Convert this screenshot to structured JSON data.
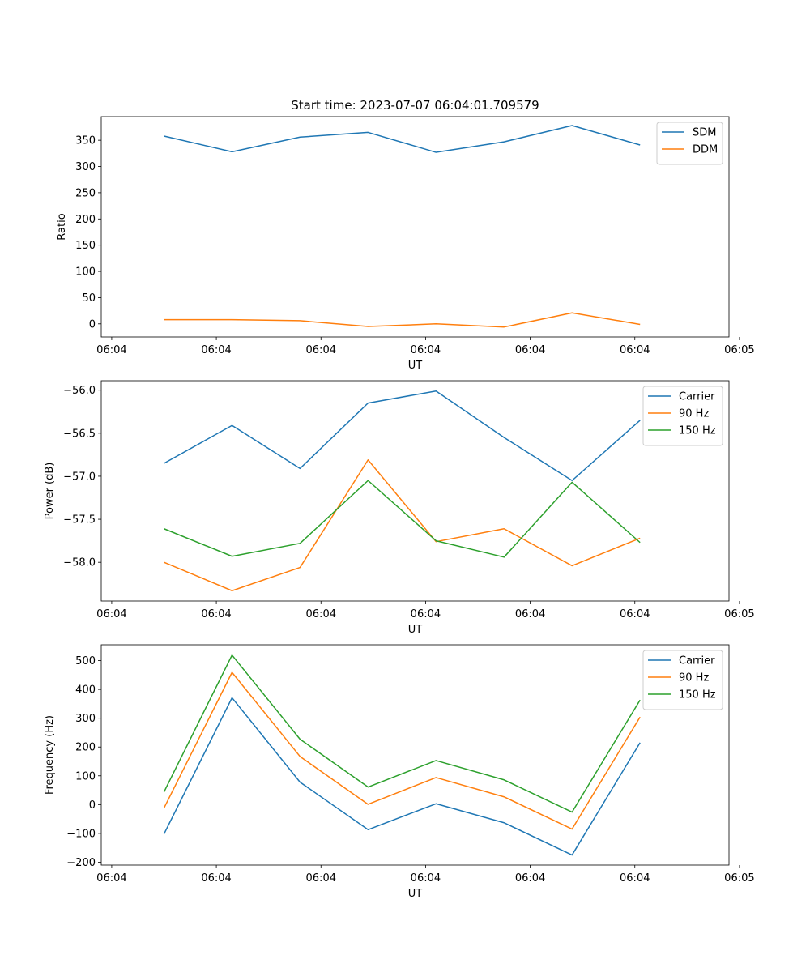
{
  "chart_data": [
    {
      "type": "line",
      "title": "Start time: 2023-07-07 06:04:01.709579",
      "xlabel": "UT",
      "ylabel": "Ratio",
      "x": [
        0.5,
        1.15,
        1.8,
        2.45,
        3.1,
        3.75,
        4.4,
        5.05
      ],
      "xlim": [
        -0.1,
        5.9
      ],
      "xticks": [
        0,
        1,
        2,
        3,
        4,
        5,
        6
      ],
      "xtick_labels": [
        "06:04",
        "06:04",
        "06:04",
        "06:04",
        "06:04",
        "06:04",
        "06:05"
      ],
      "ylim": [
        -25,
        395
      ],
      "yticks": [
        0,
        50,
        100,
        150,
        200,
        250,
        300,
        350
      ],
      "ytick_labels": [
        "0",
        "50",
        "100",
        "150",
        "200",
        "250",
        "300",
        "350"
      ],
      "legend": "top-right",
      "series": [
        {
          "name": "SDM",
          "color": "#1f77b4",
          "values": [
            358,
            328,
            356,
            365,
            327,
            347,
            378,
            341
          ]
        },
        {
          "name": "DDM",
          "color": "#ff7f0e",
          "values": [
            8,
            8,
            6,
            -5,
            0,
            -6,
            21,
            -1
          ]
        }
      ]
    },
    {
      "type": "line",
      "title": "",
      "xlabel": "UT",
      "ylabel": "Power (dB)",
      "x": [
        0.5,
        1.15,
        1.8,
        2.45,
        3.1,
        3.75,
        4.4,
        5.05
      ],
      "xlim": [
        -0.1,
        5.9
      ],
      "xticks": [
        0,
        1,
        2,
        3,
        4,
        5,
        6
      ],
      "xtick_labels": [
        "06:04",
        "06:04",
        "06:04",
        "06:04",
        "06:04",
        "06:04",
        "06:05"
      ],
      "ylim": [
        -58.45,
        -55.89
      ],
      "yticks": [
        -58.0,
        -57.5,
        -57.0,
        -56.5,
        -56.0
      ],
      "ytick_labels": [
        "−58.0",
        "−57.5",
        "−57.0",
        "−56.5",
        "−56.0"
      ],
      "legend": "top-right",
      "series": [
        {
          "name": "Carrier",
          "color": "#1f77b4",
          "values": [
            -56.85,
            -56.41,
            -56.91,
            -56.15,
            -56.01,
            -56.55,
            -57.05,
            -56.35
          ]
        },
        {
          "name": "90 Hz",
          "color": "#ff7f0e",
          "values": [
            -58.0,
            -58.33,
            -58.06,
            -56.81,
            -57.76,
            -57.61,
            -58.04,
            -57.72
          ]
        },
        {
          "name": "150 Hz",
          "color": "#2ca02c",
          "values": [
            -57.61,
            -57.93,
            -57.78,
            -57.05,
            -57.75,
            -57.94,
            -57.07,
            -57.77
          ]
        }
      ]
    },
    {
      "type": "line",
      "title": "",
      "xlabel": "UT",
      "ylabel": "Frequency (Hz)",
      "x": [
        0.5,
        1.15,
        1.8,
        2.45,
        3.1,
        3.75,
        4.4,
        5.05
      ],
      "xlim": [
        -0.1,
        5.9
      ],
      "xticks": [
        0,
        1,
        2,
        3,
        4,
        5,
        6
      ],
      "xtick_labels": [
        "06:04",
        "06:04",
        "06:04",
        "06:04",
        "06:04",
        "06:04",
        "06:05"
      ],
      "ylim": [
        -210,
        555
      ],
      "yticks": [
        -200,
        -100,
        0,
        100,
        200,
        300,
        400,
        500
      ],
      "ytick_labels": [
        "−200",
        "−100",
        "0",
        "100",
        "200",
        "300",
        "400",
        "500"
      ],
      "legend": "top-right",
      "series": [
        {
          "name": "Carrier",
          "color": "#1f77b4",
          "values": [
            -102,
            371,
            78,
            -87,
            3,
            -63,
            -175,
            215
          ]
        },
        {
          "name": "90 Hz",
          "color": "#ff7f0e",
          "values": [
            -12,
            459,
            167,
            1,
            94,
            27,
            -85,
            304
          ]
        },
        {
          "name": "150 Hz",
          "color": "#2ca02c",
          "values": [
            44,
            519,
            227,
            61,
            153,
            86,
            -26,
            363
          ]
        }
      ]
    }
  ]
}
